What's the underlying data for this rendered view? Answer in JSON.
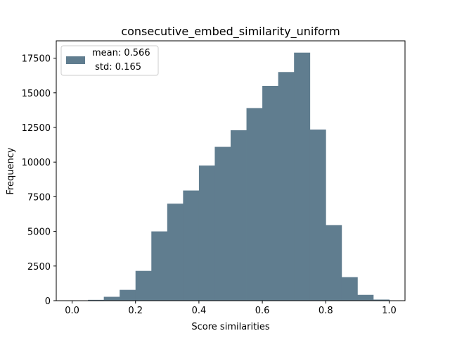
{
  "chart_data": {
    "type": "bar",
    "title": "consecutive_embed_similarity_uniform",
    "xlabel": "Score similarities",
    "ylabel": "Frequency",
    "xlim": [
      -0.05,
      1.05
    ],
    "ylim": [
      0,
      18750
    ],
    "xticks": [
      0.0,
      0.2,
      0.4,
      0.6,
      0.8,
      1.0
    ],
    "xtick_labels": [
      "0.0",
      "0.2",
      "0.4",
      "0.6",
      "0.8",
      "1.0"
    ],
    "yticks": [
      0,
      2500,
      5000,
      7500,
      10000,
      12500,
      15000,
      17500
    ],
    "ytick_labels": [
      "0",
      "2500",
      "5000",
      "7500",
      "10000",
      "12500",
      "15000",
      "17500"
    ],
    "bin_edges": [
      0.0,
      0.05,
      0.1,
      0.15,
      0.2,
      0.25,
      0.3,
      0.35,
      0.4,
      0.45,
      0.5,
      0.55,
      0.6,
      0.65,
      0.7,
      0.75,
      0.8,
      0.85,
      0.9,
      0.95,
      1.0
    ],
    "values": [
      10,
      60,
      280,
      780,
      2150,
      5000,
      7000,
      7950,
      9750,
      11100,
      12300,
      13900,
      15500,
      16500,
      17900,
      12350,
      5450,
      1700,
      420,
      80
    ],
    "color": "#607d8f",
    "legend": {
      "placement": "upper-left",
      "line1": "mean: 0.566",
      "line2": " std: 0.165"
    }
  }
}
